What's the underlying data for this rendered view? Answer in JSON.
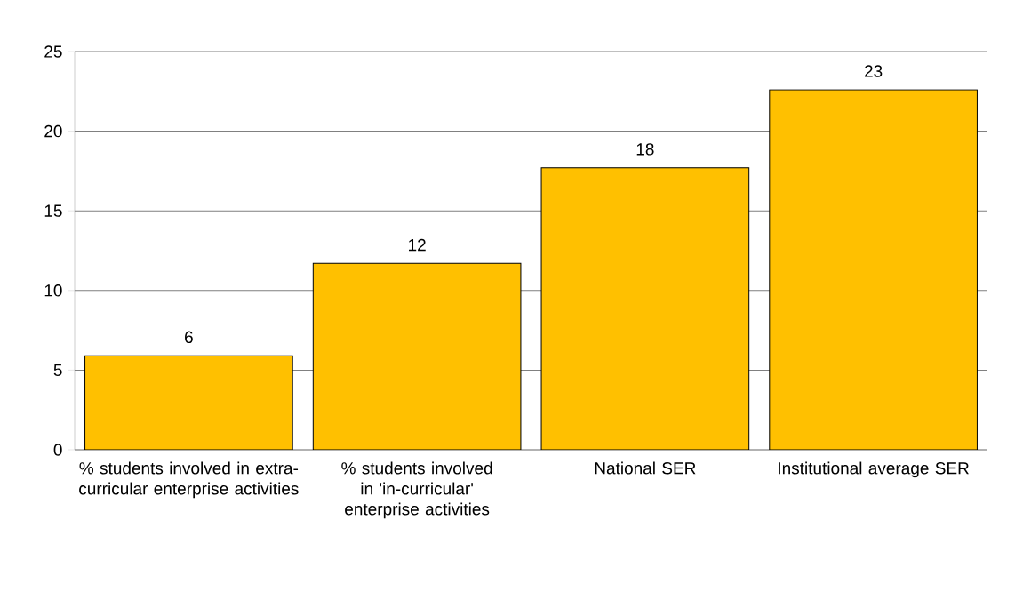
{
  "chart_data": {
    "type": "bar",
    "categories": [
      "% students involved in extra-curricular enterprise activities",
      "% students involved in 'in-curricular' enterprise activities",
      "National SER",
      "Institutional average SER"
    ],
    "values": [
      5.9,
      11.7,
      17.7,
      22.6
    ],
    "value_labels": [
      "6",
      "12",
      "18",
      "23"
    ],
    "color": "#ffc000",
    "ylim": [
      0,
      25
    ],
    "yticks": [
      0,
      5,
      10,
      15,
      20,
      25
    ],
    "grid": "y"
  }
}
